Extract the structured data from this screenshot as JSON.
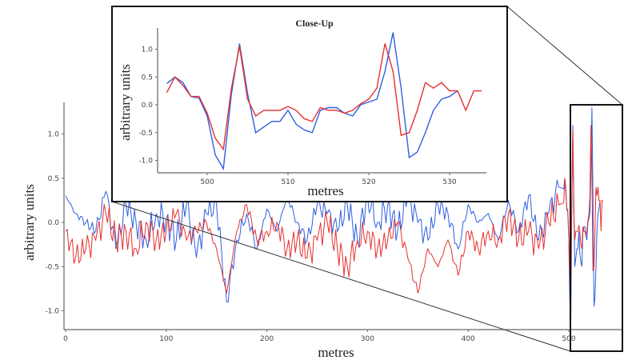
{
  "chart_data": [
    {
      "type": "line",
      "title": "",
      "xlabel": "metres",
      "ylabel": "arbitrary units",
      "xlim": [
        0,
        540
      ],
      "ylim": [
        -1.2,
        1.4
      ],
      "xticks": [
        0,
        100,
        200,
        300,
        400,
        500
      ],
      "yticks": [
        -1.0,
        -0.5,
        0.0,
        0.5,
        1.0
      ],
      "xtick_labels": [
        "0",
        "100",
        "200",
        "300",
        "400",
        "500"
      ],
      "ytick_labels": [
        "-1.0",
        "-0.5",
        "0.0",
        "0.5",
        "1.0"
      ],
      "grid": false,
      "x": [
        0,
        10,
        20,
        30,
        40,
        50,
        60,
        70,
        80,
        90,
        100,
        110,
        120,
        130,
        140,
        150,
        160,
        170,
        180,
        190,
        200,
        210,
        220,
        230,
        240,
        250,
        260,
        270,
        280,
        290,
        300,
        310,
        320,
        330,
        340,
        350,
        360,
        370,
        380,
        390,
        400,
        410,
        420,
        430,
        440,
        450,
        460,
        470,
        480,
        490
      ],
      "series": [
        {
          "color": "#2f5fe0",
          "values": [
            0.3,
            0.1,
            0.0,
            -0.1,
            0.35,
            -0.3,
            0.2,
            0.0,
            -0.2,
            0.1,
            0.05,
            -0.2,
            0.2,
            -0.4,
            0.1,
            0.2,
            -0.9,
            -0.2,
            0.1,
            -0.3,
            0.15,
            -0.1,
            0.3,
            0.0,
            -0.2,
            0.2,
            0.1,
            -0.1,
            0.2,
            -0.2,
            0.3,
            0.0,
            0.2,
            -0.1,
            0.3,
            0.0,
            -0.2,
            0.2,
            0.1,
            -0.3,
            0.2,
            0.0,
            0.1,
            -0.2,
            0.25,
            -0.1,
            0.3,
            -0.2,
            0.1,
            0.4
          ]
        },
        {
          "color": "#e53030",
          "values": [
            -0.1,
            -0.4,
            -0.3,
            -0.2,
            0.1,
            -0.2,
            -0.1,
            -0.3,
            0.0,
            -0.2,
            -0.1,
            0.1,
            -0.2,
            -0.1,
            0.0,
            -0.3,
            -0.8,
            -0.1,
            0.2,
            -0.2,
            -0.1,
            0.0,
            -0.3,
            -0.2,
            -0.4,
            -0.2,
            0.0,
            -0.3,
            -0.5,
            -0.2,
            -0.1,
            -0.3,
            -0.2,
            0.0,
            -0.4,
            -0.8,
            -0.3,
            -0.5,
            -0.2,
            -0.6,
            -0.1,
            -0.3,
            -0.1,
            -0.2,
            0.1,
            -0.2,
            -0.1,
            -0.3,
            0.0,
            0.2
          ]
        }
      ],
      "zoom_region_x": [
        495,
        534
      ]
    },
    {
      "type": "line",
      "title": "Close-Up",
      "xlabel": "metres",
      "ylabel": "arbitrary units",
      "xlim": [
        494,
        537
      ],
      "ylim": [
        -1.2,
        1.4
      ],
      "xticks": [
        500,
        510,
        520,
        530
      ],
      "yticks": [
        -1.0,
        -0.5,
        0.0,
        0.5,
        1.0
      ],
      "xtick_labels": [
        "500",
        "510",
        "520",
        "530"
      ],
      "ytick_labels": [
        "-1.0",
        "-0.5",
        "0.0",
        "0.5",
        "1.0"
      ],
      "grid": false,
      "x": [
        495,
        496,
        497,
        498,
        499,
        500,
        501,
        502,
        503,
        504,
        505,
        506,
        507,
        508,
        509,
        510,
        511,
        512,
        513,
        514,
        515,
        516,
        517,
        518,
        519,
        520,
        521,
        522,
        523,
        524,
        525,
        526,
        527,
        528,
        529,
        530,
        531,
        532,
        533,
        534
      ],
      "series": [
        {
          "color": "#2f5fe0",
          "values": [
            0.38,
            0.5,
            0.4,
            0.15,
            0.12,
            -0.2,
            -0.9,
            -1.15,
            0.2,
            1.1,
            0.2,
            -0.5,
            -0.4,
            -0.3,
            -0.3,
            -0.1,
            -0.35,
            -0.45,
            -0.5,
            -0.1,
            -0.05,
            -0.05,
            -0.15,
            -0.2,
            0.0,
            0.05,
            0.1,
            0.6,
            1.3,
            0.3,
            -0.95,
            -0.85,
            -0.5,
            -0.1,
            0.1,
            0.15,
            0.25,
            null,
            null,
            null
          ]
        },
        {
          "color": "#e53030",
          "values": [
            0.22,
            0.5,
            0.35,
            0.15,
            0.15,
            -0.15,
            -0.6,
            -0.8,
            0.3,
            1.05,
            0.1,
            -0.2,
            -0.1,
            -0.1,
            -0.1,
            -0.03,
            -0.1,
            -0.25,
            -0.3,
            -0.05,
            -0.1,
            -0.1,
            -0.15,
            -0.1,
            0.02,
            0.1,
            0.3,
            1.1,
            0.6,
            -0.55,
            -0.5,
            -0.1,
            0.4,
            0.3,
            0.4,
            0.25,
            0.25,
            -0.1,
            0.25,
            0.25
          ]
        }
      ]
    }
  ]
}
